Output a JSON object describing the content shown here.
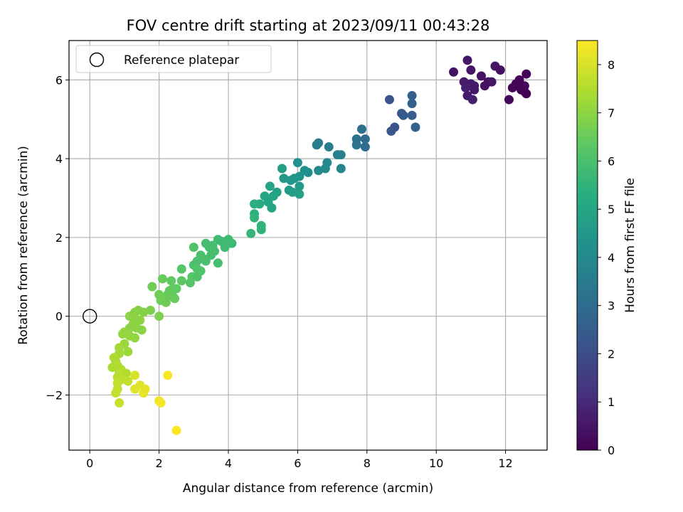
{
  "chart_data": {
    "type": "scatter",
    "title": "FOV centre drift starting at 2023/09/11 00:43:28",
    "xlabel": "Angular distance from reference (arcmin)",
    "ylabel": "Rotation from reference (arcmin)",
    "xlim": [
      -0.6,
      13.2
    ],
    "ylim": [
      -3.4,
      7.0
    ],
    "xticks": [
      0,
      2,
      4,
      6,
      8,
      10,
      12
    ],
    "yticks": [
      -2,
      0,
      2,
      4,
      6
    ],
    "ytick_labels": [
      "−2",
      "0",
      "2",
      "4",
      "6"
    ],
    "grid": true,
    "legend": {
      "position": "upper-left",
      "entries": [
        {
          "label": "Reference platepar",
          "marker": "open-circle"
        }
      ]
    },
    "reference_point": {
      "x": 0,
      "y": 0
    },
    "colorbar": {
      "label": "Hours from first FF file",
      "colormap": "viridis",
      "range": [
        0,
        8.5
      ],
      "ticks": [
        0,
        1,
        2,
        3,
        4,
        5,
        6,
        7,
        8
      ]
    },
    "series": [
      {
        "points": [
          {
            "x": 10.5,
            "y": 6.2,
            "c": 0.4
          },
          {
            "x": 10.9,
            "y": 6.5,
            "c": 0.5
          },
          {
            "x": 11.0,
            "y": 6.25,
            "c": 0.5
          },
          {
            "x": 10.8,
            "y": 5.95,
            "c": 0.6
          },
          {
            "x": 11.0,
            "y": 5.9,
            "c": 0.6
          },
          {
            "x": 11.1,
            "y": 5.75,
            "c": 0.5
          },
          {
            "x": 10.9,
            "y": 5.6,
            "c": 0.6
          },
          {
            "x": 11.05,
            "y": 5.5,
            "c": 0.7
          },
          {
            "x": 10.85,
            "y": 5.8,
            "c": 0.7
          },
          {
            "x": 11.3,
            "y": 6.1,
            "c": 0.4
          },
          {
            "x": 11.5,
            "y": 5.95,
            "c": 0.3
          },
          {
            "x": 11.7,
            "y": 6.35,
            "c": 0.5
          },
          {
            "x": 11.85,
            "y": 6.25,
            "c": 0.4
          },
          {
            "x": 11.4,
            "y": 5.85,
            "c": 0.4
          },
          {
            "x": 11.1,
            "y": 5.85,
            "c": 0.6
          },
          {
            "x": 11.6,
            "y": 5.95,
            "c": 0.45
          },
          {
            "x": 12.1,
            "y": 5.5,
            "c": 0.2
          },
          {
            "x": 12.2,
            "y": 5.8,
            "c": 0.1
          },
          {
            "x": 12.3,
            "y": 5.9,
            "c": 0.1
          },
          {
            "x": 12.4,
            "y": 6.0,
            "c": 0.1
          },
          {
            "x": 12.45,
            "y": 5.75,
            "c": 0.05
          },
          {
            "x": 12.5,
            "y": 5.85,
            "c": 0.05
          },
          {
            "x": 12.55,
            "y": 5.7,
            "c": 0.05
          },
          {
            "x": 12.6,
            "y": 6.15,
            "c": 0.05
          },
          {
            "x": 12.6,
            "y": 5.65,
            "c": 0.02
          },
          {
            "x": 12.55,
            "y": 5.85,
            "c": 0.1
          },
          {
            "x": 8.65,
            "y": 5.5,
            "c": 2.2
          },
          {
            "x": 8.7,
            "y": 4.7,
            "c": 2.3
          },
          {
            "x": 8.8,
            "y": 4.8,
            "c": 2.2
          },
          {
            "x": 9.0,
            "y": 5.15,
            "c": 2.3
          },
          {
            "x": 9.05,
            "y": 5.1,
            "c": 2.4
          },
          {
            "x": 9.3,
            "y": 5.6,
            "c": 2.6
          },
          {
            "x": 9.3,
            "y": 5.4,
            "c": 2.7
          },
          {
            "x": 9.3,
            "y": 5.1,
            "c": 2.5
          },
          {
            "x": 9.4,
            "y": 4.8,
            "c": 2.6
          },
          {
            "x": 7.7,
            "y": 4.5,
            "c": 3.1
          },
          {
            "x": 7.7,
            "y": 4.35,
            "c": 3.2
          },
          {
            "x": 7.85,
            "y": 4.75,
            "c": 3.1
          },
          {
            "x": 7.95,
            "y": 4.5,
            "c": 3.0
          },
          {
            "x": 7.95,
            "y": 4.3,
            "c": 3.0
          },
          {
            "x": 6.55,
            "y": 4.35,
            "c": 3.5
          },
          {
            "x": 6.6,
            "y": 4.4,
            "c": 3.6
          },
          {
            "x": 6.9,
            "y": 4.3,
            "c": 3.6
          },
          {
            "x": 7.15,
            "y": 4.1,
            "c": 3.7
          },
          {
            "x": 7.25,
            "y": 4.1,
            "c": 3.7
          },
          {
            "x": 7.25,
            "y": 3.75,
            "c": 3.8
          },
          {
            "x": 6.85,
            "y": 3.9,
            "c": 3.9
          },
          {
            "x": 6.8,
            "y": 3.75,
            "c": 4.0
          },
          {
            "x": 6.6,
            "y": 3.7,
            "c": 4.0
          },
          {
            "x": 6.3,
            "y": 3.65,
            "c": 4.1
          },
          {
            "x": 6.2,
            "y": 3.7,
            "c": 4.2
          },
          {
            "x": 6.0,
            "y": 3.9,
            "c": 4.2
          },
          {
            "x": 6.05,
            "y": 3.55,
            "c": 4.3
          },
          {
            "x": 5.9,
            "y": 3.5,
            "c": 4.4
          },
          {
            "x": 5.8,
            "y": 3.45,
            "c": 4.5
          },
          {
            "x": 5.6,
            "y": 3.5,
            "c": 4.5
          },
          {
            "x": 5.55,
            "y": 3.75,
            "c": 4.7
          },
          {
            "x": 5.75,
            "y": 3.2,
            "c": 4.6
          },
          {
            "x": 5.85,
            "y": 3.15,
            "c": 4.7
          },
          {
            "x": 6.05,
            "y": 3.3,
            "c": 4.6
          },
          {
            "x": 6.05,
            "y": 3.1,
            "c": 4.8
          },
          {
            "x": 5.4,
            "y": 3.15,
            "c": 4.8
          },
          {
            "x": 5.3,
            "y": 3.05,
            "c": 4.9
          },
          {
            "x": 5.2,
            "y": 3.3,
            "c": 4.9
          },
          {
            "x": 5.05,
            "y": 3.05,
            "c": 5.0
          },
          {
            "x": 5.15,
            "y": 2.9,
            "c": 5.0
          },
          {
            "x": 5.25,
            "y": 2.75,
            "c": 5.0
          },
          {
            "x": 4.9,
            "y": 2.85,
            "c": 5.2
          },
          {
            "x": 4.75,
            "y": 2.85,
            "c": 5.3
          },
          {
            "x": 4.75,
            "y": 2.6,
            "c": 5.4
          },
          {
            "x": 4.75,
            "y": 2.5,
            "c": 5.5
          },
          {
            "x": 4.95,
            "y": 2.3,
            "c": 5.5
          },
          {
            "x": 4.95,
            "y": 2.2,
            "c": 5.5
          },
          {
            "x": 4.65,
            "y": 2.1,
            "c": 5.6
          },
          {
            "x": 4.1,
            "y": 1.85,
            "c": 5.7
          },
          {
            "x": 4.0,
            "y": 1.95,
            "c": 5.8
          },
          {
            "x": 3.9,
            "y": 1.75,
            "c": 5.8
          },
          {
            "x": 3.8,
            "y": 1.9,
            "c": 5.8
          },
          {
            "x": 3.7,
            "y": 1.95,
            "c": 5.8
          },
          {
            "x": 3.55,
            "y": 1.8,
            "c": 5.9
          },
          {
            "x": 3.45,
            "y": 1.75,
            "c": 5.9
          },
          {
            "x": 3.35,
            "y": 1.85,
            "c": 5.9
          },
          {
            "x": 3.2,
            "y": 1.55,
            "c": 6.0
          },
          {
            "x": 3.1,
            "y": 1.4,
            "c": 6.0
          },
          {
            "x": 3.0,
            "y": 1.75,
            "c": 6.1
          },
          {
            "x": 3.0,
            "y": 1.3,
            "c": 6.0
          },
          {
            "x": 3.1,
            "y": 1.2,
            "c": 6.1
          },
          {
            "x": 3.2,
            "y": 1.15,
            "c": 6.1
          },
          {
            "x": 3.35,
            "y": 1.4,
            "c": 6.0
          },
          {
            "x": 3.5,
            "y": 1.55,
            "c": 5.9
          },
          {
            "x": 3.7,
            "y": 1.35,
            "c": 5.9
          },
          {
            "x": 3.6,
            "y": 1.65,
            "c": 5.9
          },
          {
            "x": 3.3,
            "y": 1.45,
            "c": 6.0
          },
          {
            "x": 2.95,
            "y": 1.0,
            "c": 6.2
          },
          {
            "x": 3.1,
            "y": 1.0,
            "c": 6.1
          },
          {
            "x": 2.9,
            "y": 0.85,
            "c": 6.2
          },
          {
            "x": 2.65,
            "y": 1.2,
            "c": 6.2
          },
          {
            "x": 2.65,
            "y": 0.9,
            "c": 6.3
          },
          {
            "x": 2.4,
            "y": 0.7,
            "c": 6.4
          },
          {
            "x": 2.35,
            "y": 0.9,
            "c": 6.4
          },
          {
            "x": 2.1,
            "y": 0.95,
            "c": 6.5
          },
          {
            "x": 2.3,
            "y": 0.65,
            "c": 6.4
          },
          {
            "x": 2.4,
            "y": 0.5,
            "c": 6.4
          },
          {
            "x": 2.45,
            "y": 0.45,
            "c": 6.5
          },
          {
            "x": 2.5,
            "y": 0.7,
            "c": 6.4
          },
          {
            "x": 2.2,
            "y": 0.45,
            "c": 6.5
          },
          {
            "x": 2.0,
            "y": 0.55,
            "c": 6.6
          },
          {
            "x": 2.05,
            "y": 0.4,
            "c": 6.6
          },
          {
            "x": 2.2,
            "y": 0.35,
            "c": 6.6
          },
          {
            "x": 2.25,
            "y": 0.55,
            "c": 6.5
          },
          {
            "x": 1.8,
            "y": 0.75,
            "c": 6.6
          },
          {
            "x": 1.75,
            "y": 0.15,
            "c": 6.8
          },
          {
            "x": 2.0,
            "y": 0.0,
            "c": 6.8
          },
          {
            "x": 1.55,
            "y": 0.1,
            "c": 6.9
          },
          {
            "x": 1.4,
            "y": 0.15,
            "c": 6.9
          },
          {
            "x": 1.3,
            "y": 0.1,
            "c": 6.9
          },
          {
            "x": 1.15,
            "y": 0.0,
            "c": 7.0
          },
          {
            "x": 1.3,
            "y": -0.05,
            "c": 7.0
          },
          {
            "x": 1.45,
            "y": -0.1,
            "c": 7.0
          },
          {
            "x": 1.25,
            "y": -0.2,
            "c": 7.0
          },
          {
            "x": 1.15,
            "y": -0.3,
            "c": 7.0
          },
          {
            "x": 1.35,
            "y": -0.3,
            "c": 7.0
          },
          {
            "x": 1.5,
            "y": -0.35,
            "c": 7.0
          },
          {
            "x": 1.3,
            "y": -0.55,
            "c": 7.1
          },
          {
            "x": 1.0,
            "y": -0.4,
            "c": 7.1
          },
          {
            "x": 0.95,
            "y": -0.45,
            "c": 7.1
          },
          {
            "x": 1.15,
            "y": -0.5,
            "c": 7.1
          },
          {
            "x": 1.0,
            "y": -0.7,
            "c": 7.2
          },
          {
            "x": 0.85,
            "y": -0.8,
            "c": 7.3
          },
          {
            "x": 0.85,
            "y": -0.95,
            "c": 7.3
          },
          {
            "x": 1.1,
            "y": -0.9,
            "c": 7.2
          },
          {
            "x": 0.7,
            "y": -1.05,
            "c": 7.4
          },
          {
            "x": 0.75,
            "y": -1.15,
            "c": 7.4
          },
          {
            "x": 0.65,
            "y": -1.3,
            "c": 7.4
          },
          {
            "x": 0.8,
            "y": -1.25,
            "c": 7.5
          },
          {
            "x": 0.9,
            "y": -1.35,
            "c": 7.5
          },
          {
            "x": 1.05,
            "y": -1.45,
            "c": 7.5
          },
          {
            "x": 0.85,
            "y": -1.45,
            "c": 7.6
          },
          {
            "x": 0.8,
            "y": -1.55,
            "c": 7.6
          },
          {
            "x": 0.95,
            "y": -1.6,
            "c": 7.6
          },
          {
            "x": 1.1,
            "y": -1.65,
            "c": 7.7
          },
          {
            "x": 0.8,
            "y": -1.7,
            "c": 7.7
          },
          {
            "x": 0.75,
            "y": -1.95,
            "c": 7.7
          },
          {
            "x": 0.8,
            "y": -1.85,
            "c": 7.7
          },
          {
            "x": 0.85,
            "y": -2.2,
            "c": 7.8
          },
          {
            "x": 1.3,
            "y": -1.5,
            "c": 8.0
          },
          {
            "x": 1.3,
            "y": -1.85,
            "c": 8.1
          },
          {
            "x": 1.45,
            "y": -1.75,
            "c": 8.1
          },
          {
            "x": 1.55,
            "y": -1.95,
            "c": 8.2
          },
          {
            "x": 1.6,
            "y": -1.85,
            "c": 8.2
          },
          {
            "x": 2.0,
            "y": -2.15,
            "c": 8.3
          },
          {
            "x": 2.05,
            "y": -2.2,
            "c": 8.4
          },
          {
            "x": 2.25,
            "y": -1.5,
            "c": 8.4
          },
          {
            "x": 2.5,
            "y": -2.9,
            "c": 8.5
          }
        ]
      }
    ]
  }
}
